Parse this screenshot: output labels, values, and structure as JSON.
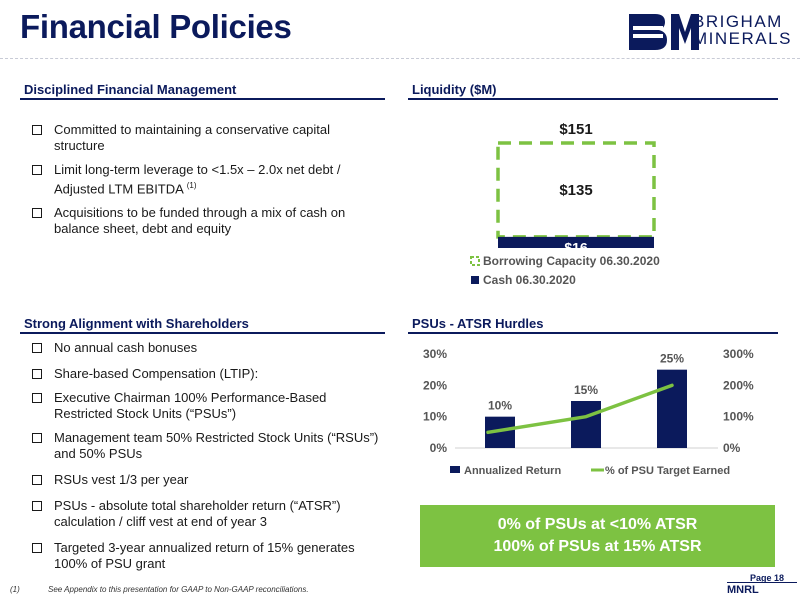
{
  "header": {
    "title": "Financial Policies",
    "logo_line1": "BRIGHAM",
    "logo_line2": "MINERALS"
  },
  "sections": {
    "financial_management": {
      "heading": "Disciplined Financial Management",
      "bullets": [
        "Committed to maintaining a conservative capital structure",
        "Limit long-term leverage to <1.5x – 2.0x net debt / Adjusted LTM EBITDA",
        "Acquisitions to be funded through a mix of cash on balance sheet, debt and equity"
      ],
      "footnote_marker": "(1)"
    },
    "liquidity": {
      "heading": "Liquidity ($M)"
    },
    "alignment": {
      "heading": "Strong Alignment with Shareholders",
      "bullet1": "No annual cash bonuses",
      "bullet2": "Share-based Compensation (LTIP):",
      "sub1": "Executive Chairman 100% Performance-Based Restricted Stock Units (“PSUs”)",
      "sub2": "Management team 50% Restricted Stock Units (“RSUs”) and 50% PSUs",
      "bullet3": "RSUs vest 1/3 per year",
      "bullet4": "PSUs - absolute total shareholder return (“ATSR”) calculation / cliff vest at end of year 3",
      "bullet5": "Targeted 3-year annualized return of 15% generates 100% of PSU grant"
    },
    "psu": {
      "heading": "PSUs - ATSR Hurdles"
    }
  },
  "callout": {
    "line1": "0% of PSUs at <10% ATSR",
    "line2": "100% of PSUs at 15% ATSR"
  },
  "footer": {
    "footnote_number": "(1)",
    "footnote_text": "See Appendix to this presentation for GAAP to Non-GAAP reconciliations.",
    "page_label": "Page 18",
    "ticker": "MNRL"
  },
  "colors": {
    "navy": "#0b1a5c",
    "green": "#7dc242"
  },
  "chart_data": [
    {
      "type": "bar",
      "stacked": true,
      "title": "Liquidity ($M)",
      "categories": [
        ""
      ],
      "series": [
        {
          "name": "Cash 06.30.2020",
          "values": [
            16
          ],
          "value_labels": [
            "$16"
          ],
          "color": "#0b1a5c",
          "style": "solid"
        },
        {
          "name": "Borrowing Capacity 06.30.2020",
          "values": [
            135
          ],
          "value_labels": [
            "$135"
          ],
          "color": "#7dc242",
          "style": "dashed-outline"
        }
      ],
      "total_label": "$151",
      "ylim": [
        0,
        151
      ],
      "legend": "bottom",
      "grid": false
    },
    {
      "type": "bar+line",
      "title": "PSUs - ATSR Hurdles",
      "categories": [
        "",
        "",
        ""
      ],
      "series": [
        {
          "name": "Annualized Return",
          "type": "bar",
          "axis": "left",
          "values": [
            10,
            15,
            25
          ],
          "value_labels": [
            "10%",
            "15%",
            "25%"
          ],
          "color": "#0b1a5c"
        },
        {
          "name": "% of PSU Target Earned",
          "type": "line",
          "axis": "right",
          "values": [
            50,
            100,
            200
          ],
          "color": "#7dc242"
        }
      ],
      "y_left": {
        "ylim": [
          0,
          30
        ],
        "ticks": [
          "0%",
          "10%",
          "20%",
          "30%"
        ]
      },
      "y_right": {
        "ylim": [
          0,
          300
        ],
        "ticks": [
          "0%",
          "100%",
          "200%",
          "300%"
        ]
      },
      "legend": "bottom",
      "grid": false
    }
  ]
}
